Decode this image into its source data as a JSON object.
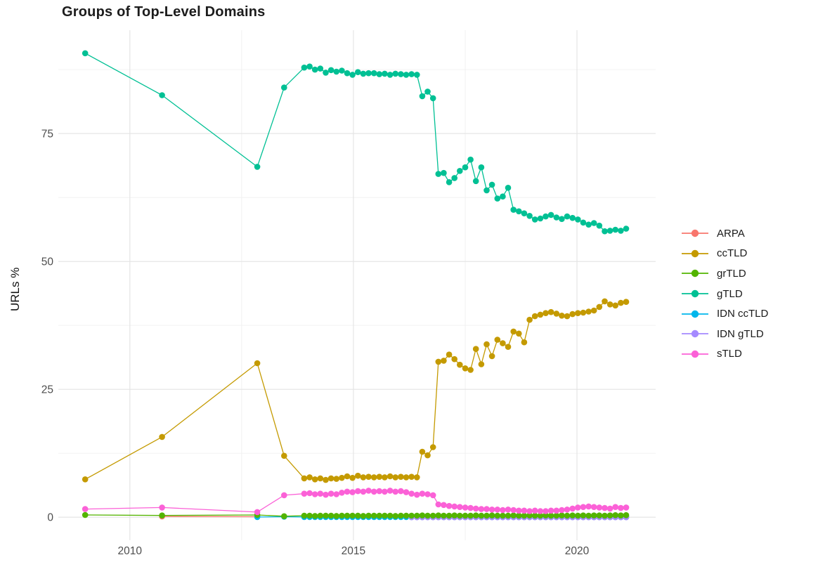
{
  "chart": {
    "title": "Groups of Top-Level Domains",
    "ylabel": "URLs %"
  },
  "chart_data": {
    "type": "line",
    "title": "Groups of Top-Level Domains",
    "xlabel": "",
    "ylabel": "URLs %",
    "legend_position": "right",
    "grid": true,
    "background": "#ffffff",
    "axes": {
      "x": {
        "ticks": [
          2010,
          2015,
          2020
        ],
        "minor_ticks": [
          2012.5,
          2017.5
        ],
        "domain": [
          2008.4,
          2021.76
        ]
      },
      "y": {
        "ticks": [
          0,
          25,
          50,
          75
        ],
        "minor_ticks": [
          12.5,
          37.5,
          62.5,
          87.5
        ],
        "domain": [
          -4.5,
          95.2
        ]
      }
    },
    "sparse_x": [
      2009.0,
      2010.72,
      2012.85,
      2013.45
    ],
    "dense_x": [
      2013.9,
      2014.02,
      2014.14,
      2014.26,
      2014.38,
      2014.5,
      2014.62,
      2014.74,
      2014.86,
      2014.98,
      2015.1,
      2015.22,
      2015.34,
      2015.46,
      2015.58,
      2015.7,
      2015.82,
      2015.94,
      2016.06,
      2016.18,
      2016.3,
      2016.42,
      2016.54,
      2016.66,
      2016.78,
      2016.9,
      2017.02,
      2017.14,
      2017.26,
      2017.38,
      2017.5,
      2017.62,
      2017.74,
      2017.86,
      2017.98,
      2018.1,
      2018.22,
      2018.34,
      2018.46,
      2018.58,
      2018.7,
      2018.82,
      2018.94,
      2019.06,
      2019.18,
      2019.3,
      2019.42,
      2019.54,
      2019.66,
      2019.78,
      2019.9,
      2020.02,
      2020.14,
      2020.26,
      2020.38,
      2020.5,
      2020.62,
      2020.74,
      2020.86,
      2020.98,
      2021.1
    ],
    "series": [
      {
        "name": "ARPA",
        "color": "#F8766D",
        "sparse": [
          null,
          0.15,
          0.1,
          null
        ],
        "dense": null
      },
      {
        "name": "ccTLD",
        "color": "#C49A00",
        "sparse": [
          7.4,
          15.7,
          30.1,
          12.0
        ],
        "dense": [
          7.6,
          7.8,
          7.4,
          7.6,
          7.3,
          7.6,
          7.5,
          7.7,
          8.0,
          7.7,
          8.1,
          7.8,
          7.9,
          7.8,
          7.9,
          7.8,
          8.0,
          7.8,
          7.9,
          7.8,
          7.9,
          7.8,
          12.8,
          12.1,
          13.7,
          30.4,
          30.6,
          31.8,
          30.9,
          29.8,
          29.1,
          28.8,
          32.9,
          29.9,
          33.8,
          31.5,
          34.7,
          34.0,
          33.3,
          36.3,
          35.9,
          34.2,
          38.6,
          39.3,
          39.6,
          39.9,
          40.1,
          39.8,
          39.4,
          39.3,
          39.7,
          39.9,
          40.0,
          40.2,
          40.4,
          41.1,
          42.2,
          41.6,
          41.4,
          41.9,
          42.1
        ]
      },
      {
        "name": "grTLD",
        "color": "#53B400",
        "sparse": [
          0.45,
          0.35,
          0.45,
          0.2
        ],
        "dense": [
          0.3,
          0.3,
          0.25,
          0.3,
          0.3,
          0.3,
          0.25,
          0.3,
          0.3,
          0.3,
          0.3,
          0.25,
          0.3,
          0.3,
          0.3,
          0.3,
          0.3,
          0.25,
          0.3,
          0.3,
          0.3,
          0.3,
          0.35,
          0.3,
          0.3,
          0.35,
          0.3,
          0.3,
          0.35,
          0.3,
          0.3,
          0.3,
          0.35,
          0.3,
          0.3,
          0.35,
          0.3,
          0.3,
          0.3,
          0.35,
          0.3,
          0.3,
          0.35,
          0.3,
          0.3,
          0.35,
          0.3,
          0.3,
          0.35,
          0.3,
          0.35,
          0.3,
          0.35,
          0.3,
          0.35,
          0.35,
          0.3,
          0.35,
          0.4,
          0.35,
          0.4
        ]
      },
      {
        "name": "gTLD",
        "color": "#00C094",
        "sparse": [
          90.7,
          82.5,
          68.5,
          84.0
        ],
        "dense": [
          87.9,
          88.1,
          87.5,
          87.7,
          86.9,
          87.4,
          87.1,
          87.3,
          86.8,
          86.5,
          87.0,
          86.7,
          86.8,
          86.8,
          86.6,
          86.7,
          86.5,
          86.7,
          86.6,
          86.5,
          86.6,
          86.5,
          82.3,
          83.2,
          81.9,
          67.1,
          67.3,
          65.5,
          66.3,
          67.7,
          68.4,
          69.9,
          65.7,
          68.4,
          63.9,
          65.0,
          62.3,
          62.7,
          64.4,
          60.1,
          59.8,
          59.4,
          58.9,
          58.2,
          58.4,
          58.8,
          59.1,
          58.6,
          58.3,
          58.8,
          58.5,
          58.2,
          57.6,
          57.2,
          57.5,
          57.0,
          55.9,
          56.0,
          56.2,
          56.0,
          56.4
        ]
      },
      {
        "name": "IDN ccTLD",
        "color": "#00B6EB",
        "sparse": [
          null,
          null,
          0.05,
          0.1
        ],
        "dense": [
          0.05,
          0.05,
          0.05,
          0.05,
          0.05,
          0.05,
          0.05,
          0.05,
          0.05,
          0.05,
          0.05,
          0.05,
          0.05,
          0.05,
          0.05,
          0.05,
          0.05,
          0.05,
          0.05,
          0.05,
          0.05,
          0.05,
          0.05,
          0.05,
          0.05,
          0.05,
          0.05,
          0.05,
          0.05,
          0.05,
          0.05,
          0.05,
          0.05,
          0.05,
          0.05,
          0.05,
          0.05,
          0.05,
          0.05,
          0.05,
          0.05,
          0.05,
          0.05,
          0.05,
          0.05,
          0.05,
          0.05,
          0.05,
          0.05,
          0.05,
          0.05,
          0.05,
          0.05,
          0.05,
          0.05,
          0.05,
          0.05,
          0.05,
          0.05,
          0.05,
          0.05
        ]
      },
      {
        "name": "IDN gTLD",
        "color": "#A58AFF",
        "sparse": [
          null,
          null,
          null,
          null
        ],
        "dense": [
          null,
          null,
          null,
          null,
          null,
          null,
          null,
          null,
          null,
          null,
          null,
          null,
          null,
          null,
          null,
          null,
          null,
          null,
          null,
          null,
          0.0,
          0.0,
          0.0,
          0.0,
          0.0,
          0.0,
          0.0,
          0.0,
          0.0,
          0.0,
          0.0,
          0.0,
          0.0,
          0.0,
          0.0,
          0.0,
          0.0,
          0.0,
          0.0,
          0.0,
          0.0,
          0.0,
          0.0,
          0.0,
          0.0,
          0.0,
          0.0,
          0.0,
          0.0,
          0.0,
          0.0,
          0.0,
          0.0,
          0.0,
          0.0,
          0.0,
          0.0,
          0.0,
          0.0,
          0.0,
          0.0
        ]
      },
      {
        "name": "sTLD",
        "color": "#FB61D7",
        "sparse": [
          1.6,
          1.9,
          1.0,
          4.3
        ],
        "dense": [
          4.6,
          4.7,
          4.5,
          4.6,
          4.4,
          4.6,
          4.5,
          4.8,
          5.0,
          4.9,
          5.1,
          5.0,
          5.2,
          5.0,
          5.1,
          5.0,
          5.2,
          5.0,
          5.1,
          4.9,
          4.6,
          4.4,
          4.6,
          4.5,
          4.3,
          2.5,
          2.4,
          2.2,
          2.1,
          2.0,
          1.9,
          1.8,
          1.7,
          1.6,
          1.6,
          1.5,
          1.5,
          1.4,
          1.5,
          1.4,
          1.3,
          1.3,
          1.2,
          1.3,
          1.2,
          1.2,
          1.3,
          1.3,
          1.4,
          1.5,
          1.7,
          1.9,
          2.0,
          2.1,
          2.0,
          1.9,
          1.8,
          1.7,
          2.0,
          1.8,
          1.9
        ]
      }
    ]
  }
}
